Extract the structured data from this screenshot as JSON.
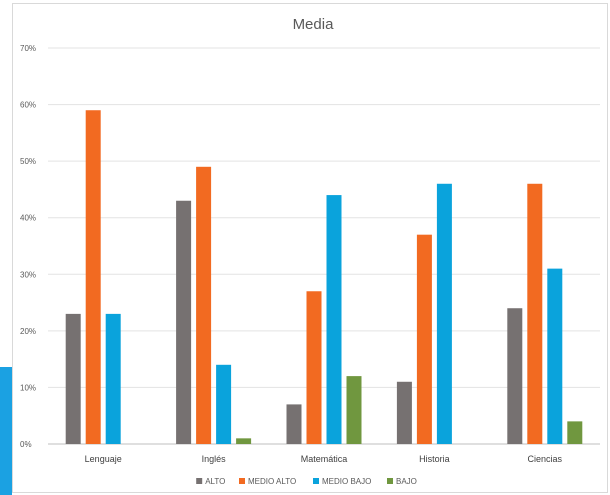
{
  "chart_data": {
    "type": "bar",
    "title": "Media",
    "categories": [
      "Lenguaje",
      "Inglés",
      "Matemática",
      "Historia",
      "Ciencias"
    ],
    "series": [
      {
        "name": "ALTO",
        "color": "#767171",
        "values": [
          23,
          43,
          7,
          11,
          24
        ]
      },
      {
        "name": "MEDIO ALTO",
        "color": "#f26a21",
        "values": [
          59,
          49,
          27,
          37,
          46
        ]
      },
      {
        "name": "MEDIO BAJO",
        "color": "#0aa3dc",
        "values": [
          23,
          14,
          44,
          46,
          31
        ]
      },
      {
        "name": "BAJO",
        "color": "#70973f",
        "values": [
          0,
          1,
          12,
          0,
          4
        ]
      }
    ],
    "y_ticks": [
      "0%",
      "10%",
      "20%",
      "30%",
      "40%",
      "50%",
      "60%",
      "70%"
    ],
    "ylim": [
      0,
      70
    ],
    "grid": true,
    "legend_position": "bottom"
  }
}
